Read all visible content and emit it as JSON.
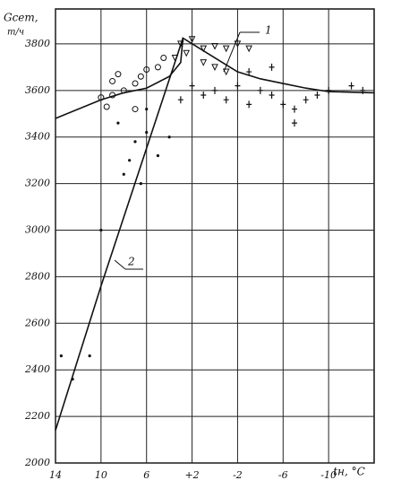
{
  "chart_data": {
    "type": "scatter-lines",
    "y_label": "Gсет,",
    "y_unit": "т/ч",
    "x_label": "tн, °C",
    "xlim": [
      14,
      -14
    ],
    "ylim": [
      2000,
      3950
    ],
    "xticks": [
      14,
      10,
      6,
      {
        "value": 2,
        "label": "+2"
      },
      -2,
      -6,
      -10
    ],
    "yticks": [
      2000,
      2200,
      2400,
      2600,
      2800,
      3000,
      3200,
      3400,
      3600,
      3800
    ],
    "grid": true,
    "lines": [
      {
        "label": "1",
        "color": "#111111",
        "x": [
          14,
          10,
          8,
          6,
          4,
          3,
          2.8,
          0,
          -2,
          -4,
          -6,
          -8,
          -10,
          -14
        ],
        "y": [
          3480,
          3560,
          3590,
          3610,
          3660,
          3720,
          3825,
          3740,
          3680,
          3650,
          3630,
          3610,
          3595,
          3590
        ]
      },
      {
        "label": "2",
        "color": "#111111",
        "x": [
          14,
          10,
          2.8
        ],
        "y": [
          2140,
          2760,
          3825
        ]
      }
    ],
    "series": [
      {
        "marker": "circle",
        "color": "#111111",
        "x": [
          10,
          9,
          9,
          8.5,
          8,
          7,
          7,
          9.5,
          6,
          5,
          4.5,
          6.5
        ],
        "y": [
          3570,
          3580,
          3640,
          3670,
          3600,
          3630,
          3520,
          3530,
          3690,
          3700,
          3740,
          3660
        ]
      },
      {
        "marker": "triangle",
        "color": "#111111",
        "x": [
          3,
          2,
          1,
          0,
          -1,
          -2,
          -3,
          1,
          0,
          -1,
          3.5,
          2.5
        ],
        "y": [
          3800,
          3820,
          3780,
          3790,
          3780,
          3800,
          3780,
          3720,
          3700,
          3680,
          3740,
          3760
        ]
      },
      {
        "marker": "plus",
        "color": "#111111",
        "x": [
          2,
          1,
          0,
          -1,
          -2,
          -3,
          -4,
          -5,
          -6,
          -7,
          -8,
          -9,
          -10,
          -12,
          -13,
          -3,
          -5,
          3,
          -7
        ],
        "y": [
          3620,
          3580,
          3600,
          3560,
          3620,
          3540,
          3600,
          3580,
          3540,
          3520,
          3560,
          3580,
          3600,
          3620,
          3600,
          3680,
          3700,
          3560,
          3460
        ]
      },
      {
        "marker": "dot",
        "color": "#111111",
        "x": [
          13.5,
          12.5,
          11,
          10,
          8,
          7,
          7.5,
          6,
          6.5,
          5,
          4,
          8.5,
          6
        ],
        "y": [
          2460,
          2360,
          2460,
          3000,
          3240,
          3380,
          3300,
          3420,
          3200,
          3320,
          3400,
          3460,
          3520
        ]
      }
    ]
  }
}
